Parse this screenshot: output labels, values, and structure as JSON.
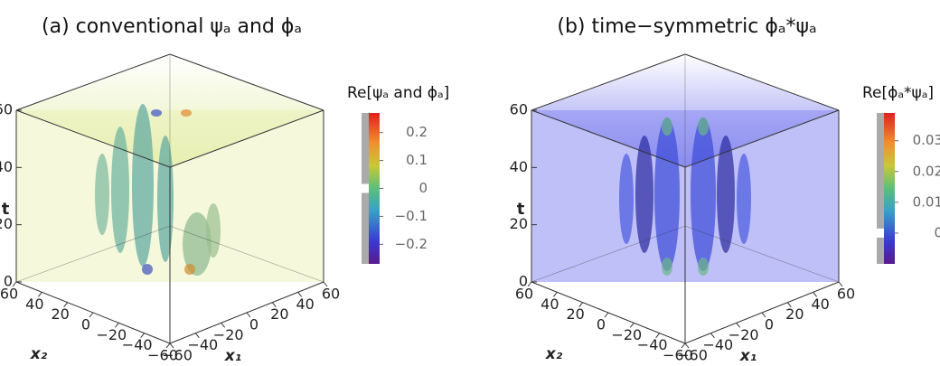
{
  "chart_data": [
    {
      "type": "volume",
      "title": "(a) conventional ψₐ and ϕₐ",
      "axes": {
        "t": {
          "label": "t",
          "lim": [
            0,
            60
          ],
          "ticks": [
            0,
            20,
            40,
            60
          ]
        },
        "x2": {
          "label": "x₂",
          "lim": [
            -60,
            60
          ],
          "ticks": [
            60,
            40,
            20,
            0,
            {
              "value": -20,
              "label": "−20"
            },
            {
              "value": -40,
              "label": "−40"
            },
            {
              "value": -60,
              "label": "−60"
            }
          ]
        },
        "x1": {
          "label": "x₁",
          "lim": [
            -60,
            60
          ],
          "ticks": [
            {
              "value": -60,
              "label": "−60"
            },
            {
              "value": -40,
              "label": "−40"
            },
            {
              "value": -20,
              "label": "−20"
            },
            0,
            20,
            40,
            60
          ]
        }
      },
      "colorbar": {
        "label": "Re[ψₐ and ϕₐ]",
        "lim": [
          -0.27,
          0.27
        ],
        "ticks": [
          {
            "value": -0.2,
            "label": "−0.2"
          },
          {
            "value": -0.1,
            "label": "−0.1"
          },
          0,
          0.1,
          0.2
        ]
      },
      "tint": "#e9efb0"
    },
    {
      "type": "volume",
      "title": "(b) time−symmetric ϕₐ*ψₐ",
      "axes": {
        "t": {
          "label": "t",
          "lim": [
            0,
            60
          ],
          "ticks": [
            0,
            20,
            40,
            60
          ]
        },
        "x2": {
          "label": "x₂",
          "lim": [
            -60,
            60
          ],
          "ticks": [
            60,
            40,
            20,
            0,
            {
              "value": -20,
              "label": "−20"
            },
            {
              "value": -40,
              "label": "−40"
            },
            {
              "value": -60,
              "label": "−60"
            }
          ]
        },
        "x1": {
          "label": "x₁",
          "lim": [
            -60,
            60
          ],
          "ticks": [
            {
              "value": -60,
              "label": "−60"
            },
            {
              "value": -40,
              "label": "−40"
            },
            {
              "value": -20,
              "label": "−20"
            },
            0,
            20,
            40,
            60
          ]
        }
      },
      "colorbar": {
        "label": "Re[ϕₐ*ψₐ]",
        "lim": [
          -0.01,
          0.039
        ],
        "ticks": [
          0,
          0.01,
          0.02,
          0.03
        ]
      },
      "tint": "#8a8cf0"
    }
  ]
}
